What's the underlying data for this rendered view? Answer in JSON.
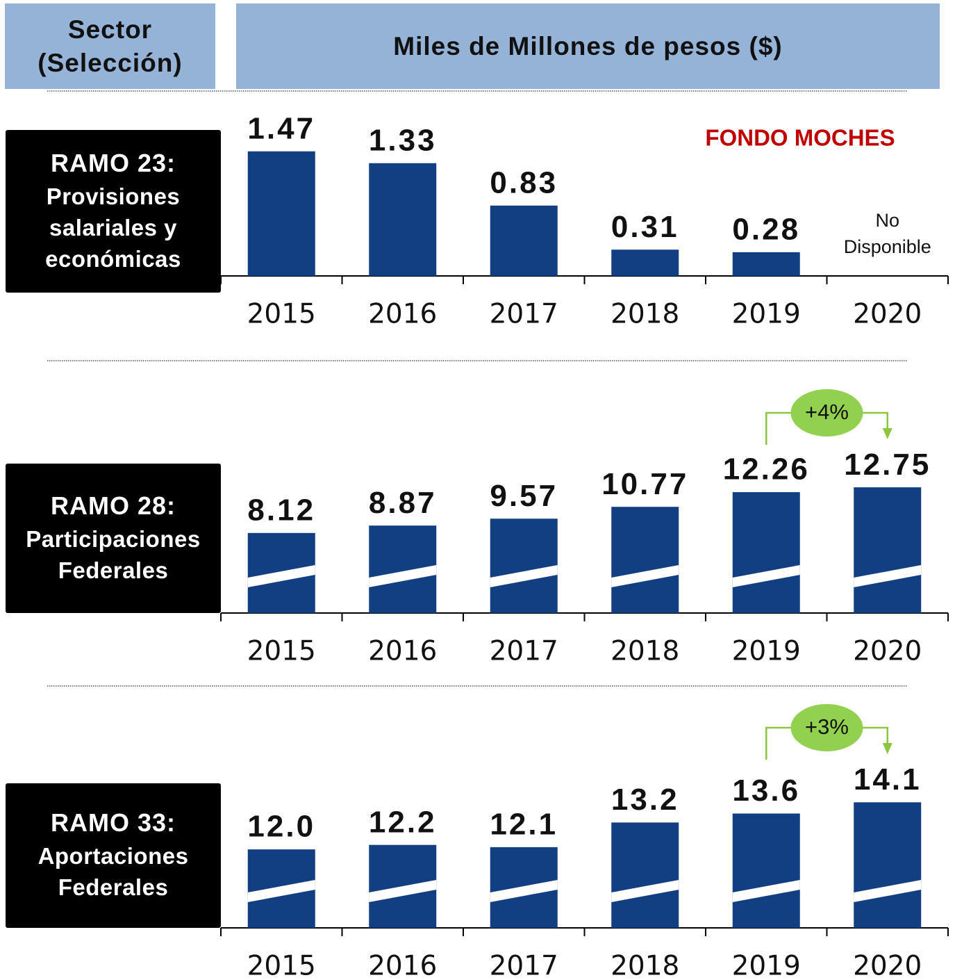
{
  "header": {
    "sector": "Sector (Selección)",
    "units": "Miles de Millones de pesos ($)"
  },
  "chart_data": [
    {
      "type": "bar",
      "title": "RAMO 23:",
      "subtitle": "Provisiones salariales y económicas",
      "categories": [
        "2015",
        "2016",
        "2017",
        "2018",
        "2019",
        "2020"
      ],
      "values": [
        1.47,
        1.33,
        0.83,
        0.31,
        0.28,
        null
      ],
      "missing_label": "No Disponible",
      "annotation": "FONDO MOCHES",
      "color": "#123f82",
      "ylim": [
        0,
        1.64
      ],
      "striped": false
    },
    {
      "type": "bar",
      "title": "RAMO 28:",
      "subtitle": "Participaciones Federales",
      "categories": [
        "2015",
        "2016",
        "2017",
        "2018",
        "2019",
        "2020"
      ],
      "values": [
        8.12,
        8.87,
        9.57,
        10.77,
        12.26,
        12.75
      ],
      "growth_label": "+4%",
      "color": "#123f82",
      "ylim": [
        0,
        14.1
      ],
      "striped": true
    },
    {
      "type": "bar",
      "title": "RAMO 33:",
      "subtitle": "Aportaciones Federales",
      "categories": [
        "2015",
        "2016",
        "2017",
        "2018",
        "2019",
        "2020"
      ],
      "values": [
        12.0,
        12.2,
        12.1,
        13.2,
        13.6,
        14.1
      ],
      "value_labels": [
        "12.0",
        "12.2",
        "12.1",
        "13.2",
        "13.6",
        "14.1"
      ],
      "growth_label": "+3%",
      "color": "#123f82",
      "ylim": [
        8.5,
        14.7
      ],
      "striped": true
    }
  ]
}
